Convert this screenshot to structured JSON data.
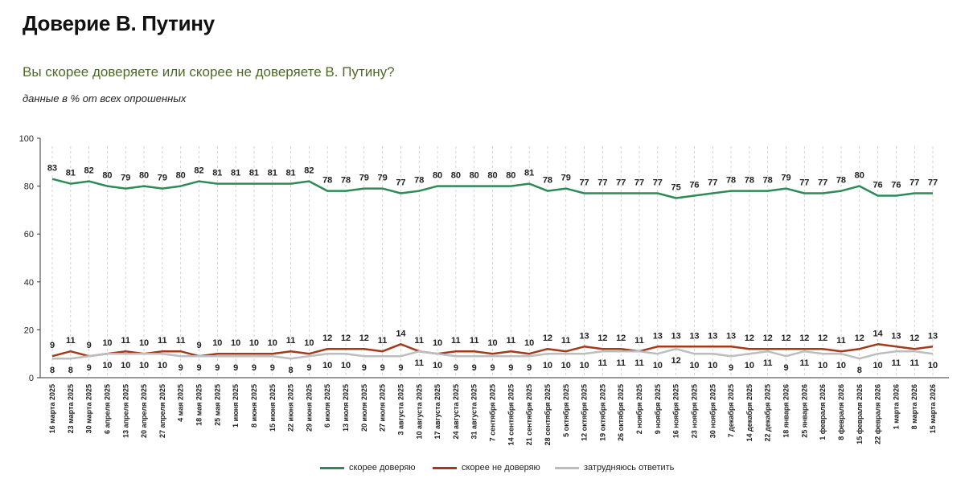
{
  "title": "Доверие В. Путину",
  "subtitle": "Вы скорее доверяете или скорее не доверяете В. Путину?",
  "note": "данные в % от всех опрошенных",
  "colors": {
    "trust": "#2e8b57",
    "distrust": "#a33a1b",
    "hard": "#bdbdbd"
  },
  "chart_data": {
    "type": "line",
    "ylim": [
      0,
      100
    ],
    "yticks": [
      0,
      20,
      40,
      60,
      80,
      100
    ],
    "categories": [
      "16 марта 2025",
      "23 марта 2025",
      "30 марта 2025",
      "6 апреля 2025",
      "13 апреля 2025",
      "20 апреля 2025",
      "27 апреля 2025",
      "4 мая 2025",
      "18 мая 2025",
      "25 мая 2025",
      "1 июня 2025",
      "8 июня 2025",
      "15 июня 2025",
      "22 июня 2025",
      "29 июня 2025",
      "6 июля 2025",
      "13 июля 2025",
      "20 июля 2025",
      "27 июля 2025",
      "3 августа 2025",
      "10 августа 2025",
      "17 августа 2025",
      "24 августа 2025",
      "31 августа 2025",
      "7 сентября 2025",
      "14 сентября 2025",
      "21 сентября 2025",
      "28 сентября 2025",
      "5 октября 2025",
      "12 октября 2025",
      "19 октября 2025",
      "26 октября 2025",
      "2 ноября 2025",
      "9 ноября 2025",
      "16 ноября 2025",
      "23 ноября 2025",
      "30 ноября 2025",
      "7 декабря 2025",
      "14 декабря 2025",
      "22 декабря 2025",
      "18 января 2026",
      "25 января 2026",
      "1 февраля 2026",
      "8 февраля 2026",
      "15 февраля 2026",
      "22 февраля 2026",
      "1 марта 2026",
      "8 марта 2026",
      "15 марта 2026"
    ],
    "series": [
      {
        "name": "скорее доверяю",
        "key": "trust",
        "values": [
          83,
          81,
          82,
          80,
          79,
          80,
          79,
          80,
          82,
          81,
          81,
          81,
          81,
          81,
          82,
          78,
          78,
          79,
          79,
          77,
          78,
          80,
          80,
          80,
          80,
          80,
          81,
          78,
          79,
          77,
          77,
          77,
          77,
          77,
          75,
          76,
          77,
          78,
          78,
          78,
          79,
          77,
          77,
          78,
          80,
          76,
          76,
          77,
          77
        ]
      },
      {
        "name": "скорее не доверяю",
        "key": "distrust",
        "values": [
          9,
          11,
          9,
          10,
          11,
          10,
          11,
          11,
          9,
          10,
          10,
          10,
          10,
          11,
          10,
          12,
          12,
          12,
          11,
          14,
          11,
          10,
          11,
          11,
          10,
          11,
          10,
          12,
          11,
          13,
          12,
          12,
          11,
          13,
          13,
          13,
          13,
          13,
          12,
          12,
          12,
          12,
          12,
          11,
          12,
          14,
          13,
          12,
          13
        ]
      },
      {
        "name": "затрудняюсь ответить",
        "key": "hard",
        "values": [
          8,
          8,
          9,
          10,
          10,
          10,
          10,
          9,
          9,
          9,
          9,
          9,
          9,
          8,
          9,
          10,
          10,
          9,
          9,
          9,
          11,
          10,
          9,
          9,
          9,
          9,
          9,
          10,
          10,
          10,
          11,
          11,
          11,
          10,
          12,
          10,
          10,
          9,
          10,
          11,
          9,
          11,
          10,
          10,
          8,
          10,
          11,
          11,
          10
        ]
      }
    ]
  }
}
